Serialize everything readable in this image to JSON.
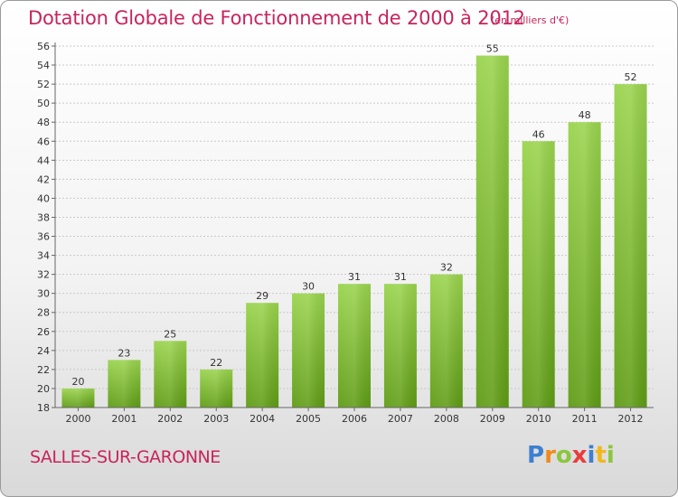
{
  "header": {
    "title": "Dotation Globale de Fonctionnement de 2000 à 2012",
    "subtitle": "(en milliers d'€)"
  },
  "footer": {
    "commune": "SALLES-SUR-GARONNE",
    "logo_text": "Proxiti"
  },
  "colors": {
    "accent": "#c8245d",
    "bar_top": "#9ad44e",
    "bar_bottom": "#5f9c15"
  },
  "chart_data": {
    "type": "bar",
    "title": "Dotation Globale de Fonctionnement de 2000 à 2012",
    "subtitle": "(en milliers d'€)",
    "categories": [
      "2000",
      "2001",
      "2002",
      "2003",
      "2004",
      "2005",
      "2006",
      "2007",
      "2008",
      "2009",
      "2010",
      "2011",
      "2012"
    ],
    "values": [
      20,
      23,
      25,
      22,
      29,
      30,
      31,
      31,
      32,
      55,
      46,
      48,
      52
    ],
    "ylim": [
      18,
      56
    ],
    "yticks": [
      18,
      20,
      22,
      24,
      26,
      28,
      30,
      32,
      34,
      36,
      38,
      40,
      42,
      44,
      46,
      48,
      50,
      52,
      54,
      56
    ],
    "grid": true,
    "xlabel": "",
    "ylabel": ""
  }
}
